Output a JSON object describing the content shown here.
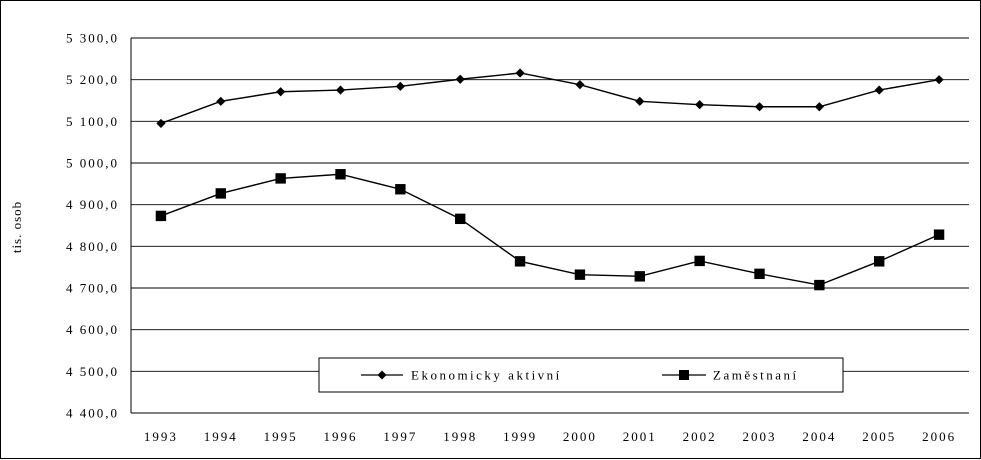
{
  "chart_data": {
    "type": "line",
    "title": "",
    "xlabel": "",
    "ylabel": "tis. osob",
    "ylim": [
      4400,
      5300
    ],
    "yticks": [
      4400,
      4500,
      4600,
      4700,
      4800,
      4900,
      5000,
      5100,
      5200,
      5300
    ],
    "ytick_labels": [
      "4 400,0",
      "4 500,0",
      "4 600,0",
      "4 700,0",
      "4 800,0",
      "4 900,0",
      "5 000,0",
      "5 100,0",
      "5 200,0",
      "5 300,0"
    ],
    "categories": [
      "1993",
      "1994",
      "1995",
      "1996",
      "1997",
      "1998",
      "1999",
      "2000",
      "2001",
      "2002",
      "2003",
      "2004",
      "2005",
      "2006"
    ],
    "grid": true,
    "legend": "bottom-center",
    "series": [
      {
        "name": "Ekonomicky aktivní",
        "marker": "diamond",
        "color": "#000000",
        "values": [
          5095,
          5148,
          5171,
          5175,
          5184,
          5201,
          5216,
          5188,
          5148,
          5140,
          5135,
          5135,
          5175,
          5200
        ]
      },
      {
        "name": "Zaměstnaní",
        "marker": "square",
        "color": "#000000",
        "values": [
          4873,
          4927,
          4963,
          4973,
          4937,
          4866,
          4764,
          4732,
          4728,
          4765,
          4734,
          4707,
          4764,
          4828
        ]
      }
    ]
  }
}
